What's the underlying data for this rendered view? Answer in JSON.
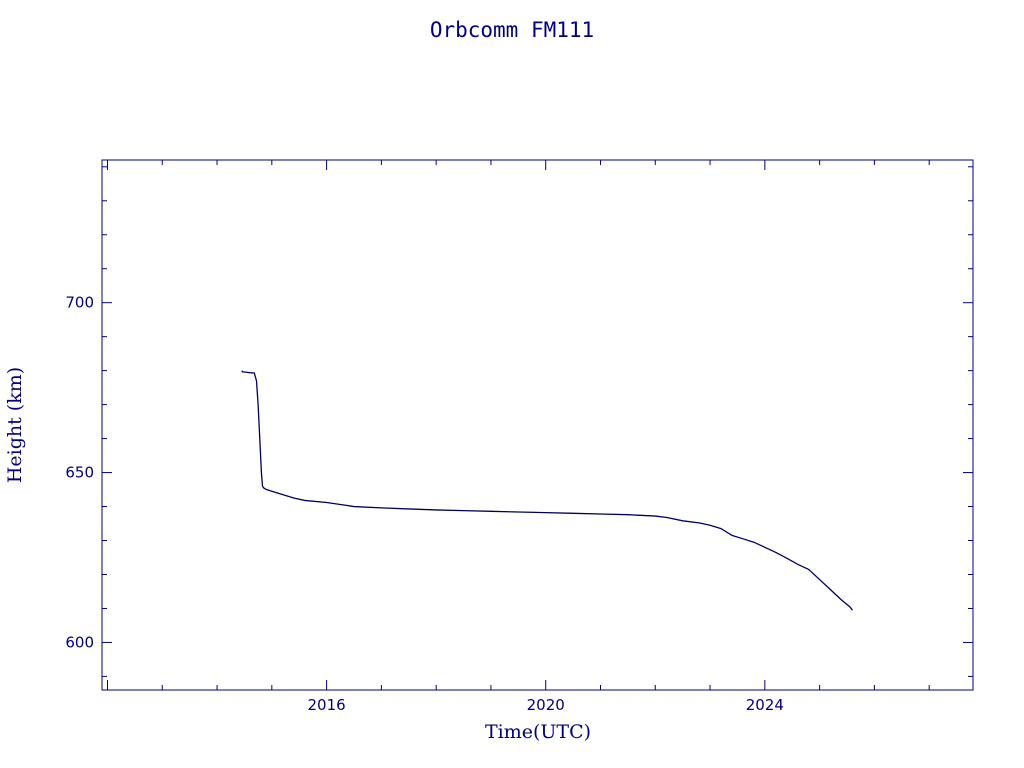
{
  "colors": {
    "axis": "#00007f",
    "line": "#000060",
    "text": "#00007f",
    "background": "#ffffff"
  },
  "chart_data": {
    "type": "line",
    "title": "Orbcomm FM111",
    "xlabel": "Time(UTC)",
    "ylabel": "Height (km)",
    "xlim": [
      2011.9,
      2027.8
    ],
    "ylim": [
      586,
      742
    ],
    "x_ticks_major": [
      2016,
      2020,
      2024
    ],
    "x_tick_labels": [
      "2016",
      "2020",
      "2024"
    ],
    "y_ticks_major": [
      600,
      650,
      700
    ],
    "y_tick_labels": [
      "600",
      "650",
      "700"
    ],
    "grid": false,
    "series": [
      {
        "x": [
          2014.45,
          2014.47,
          2014.5,
          2014.6,
          2014.68,
          2014.72,
          2014.75,
          2014.78,
          2014.81,
          2014.83,
          2014.85,
          2014.9,
          2015.0,
          2015.2,
          2015.4,
          2015.6,
          2016.0,
          2016.3,
          2016.5,
          2017.0,
          2017.5,
          2018.0,
          2018.5,
          2019.0,
          2019.5,
          2020.0,
          2020.5,
          2021.0,
          2021.5,
          2022.0,
          2022.2,
          2022.5,
          2022.8,
          2023.0,
          2023.2,
          2023.4,
          2023.6,
          2023.8,
          2024.0,
          2024.2,
          2024.4,
          2024.6,
          2024.8,
          2025.0,
          2025.2,
          2025.4,
          2025.55,
          2025.6
        ],
        "y": [
          680.0,
          679.6,
          679.6,
          679.4,
          679.3,
          677.0,
          670.0,
          660.0,
          650.0,
          646.0,
          645.5,
          645.0,
          644.5,
          643.5,
          642.5,
          641.8,
          641.2,
          640.5,
          640.0,
          639.6,
          639.3,
          639.0,
          638.8,
          638.6,
          638.4,
          638.2,
          638.0,
          637.8,
          637.6,
          637.2,
          636.8,
          635.8,
          635.2,
          634.5,
          633.5,
          631.5,
          630.5,
          629.5,
          628.0,
          626.5,
          624.8,
          623.0,
          621.5,
          618.5,
          615.5,
          612.5,
          610.5,
          609.5
        ]
      }
    ]
  }
}
